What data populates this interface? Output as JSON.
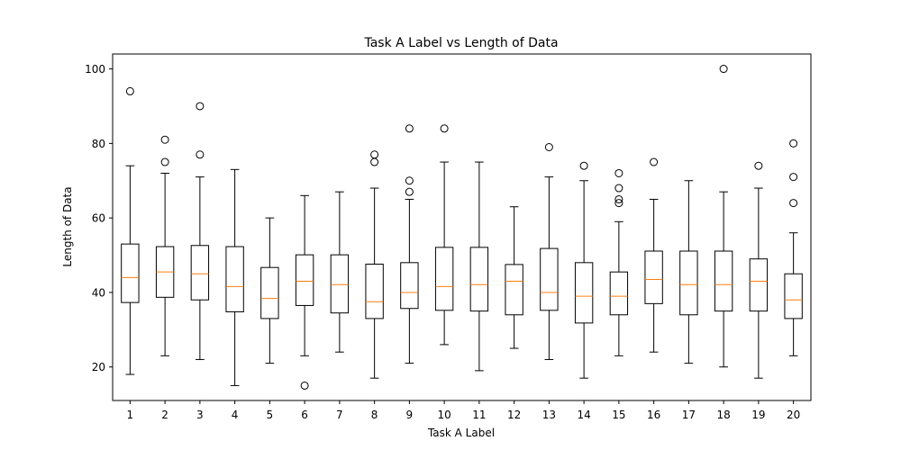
{
  "chart_data": {
    "type": "boxplot",
    "title": "Task A Label vs Length of Data",
    "xlabel": "Task A Label",
    "ylabel": "Length of Data",
    "ylim": [
      11,
      104
    ],
    "yticks": [
      20,
      40,
      60,
      80,
      100
    ],
    "grid": false,
    "box_color": "#000000",
    "median_color": "#ff7f0e",
    "categories": [
      "1",
      "2",
      "3",
      "4",
      "5",
      "6",
      "7",
      "8",
      "9",
      "10",
      "11",
      "12",
      "13",
      "14",
      "15",
      "16",
      "17",
      "18",
      "19",
      "20"
    ],
    "boxes": [
      {
        "label": "1",
        "whislo": 18,
        "q1": 37.3,
        "med": 44.0,
        "q3": 53.0,
        "whishi": 74,
        "fliers": [
          94
        ]
      },
      {
        "label": "2",
        "whislo": 23,
        "q1": 38.7,
        "med": 45.5,
        "q3": 52.3,
        "whishi": 72,
        "fliers": [
          75,
          81
        ]
      },
      {
        "label": "3",
        "whislo": 22,
        "q1": 38.0,
        "med": 45.0,
        "q3": 52.6,
        "whishi": 71,
        "fliers": [
          77,
          90
        ]
      },
      {
        "label": "4",
        "whislo": 15,
        "q1": 34.8,
        "med": 41.6,
        "q3": 52.3,
        "whishi": 73,
        "fliers": []
      },
      {
        "label": "5",
        "whislo": 21,
        "q1": 33.0,
        "med": 38.4,
        "q3": 46.7,
        "whishi": 60,
        "fliers": []
      },
      {
        "label": "6",
        "whislo": 23,
        "q1": 36.5,
        "med": 43.0,
        "q3": 50.1,
        "whishi": 66,
        "fliers": [
          15
        ]
      },
      {
        "label": "7",
        "whislo": 24,
        "q1": 34.5,
        "med": 42.1,
        "q3": 50.1,
        "whishi": 67,
        "fliers": []
      },
      {
        "label": "8",
        "whislo": 17,
        "q1": 33.0,
        "med": 37.5,
        "q3": 47.6,
        "whishi": 68,
        "fliers": [
          75,
          77
        ]
      },
      {
        "label": "9",
        "whislo": 21,
        "q1": 35.7,
        "med": 40.0,
        "q3": 48.0,
        "whishi": 65,
        "fliers": [
          67,
          70,
          84
        ]
      },
      {
        "label": "10",
        "whislo": 26,
        "q1": 35.2,
        "med": 41.6,
        "q3": 52.1,
        "whishi": 75,
        "fliers": [
          84
        ]
      },
      {
        "label": "11",
        "whislo": 19,
        "q1": 35.0,
        "med": 42.1,
        "q3": 52.1,
        "whishi": 75,
        "fliers": []
      },
      {
        "label": "12",
        "whislo": 25,
        "q1": 34.0,
        "med": 43.0,
        "q3": 47.5,
        "whishi": 63,
        "fliers": []
      },
      {
        "label": "13",
        "whislo": 22,
        "q1": 35.2,
        "med": 40.0,
        "q3": 51.8,
        "whishi": 71,
        "fliers": [
          79
        ]
      },
      {
        "label": "14",
        "whislo": 17,
        "q1": 31.8,
        "med": 39.0,
        "q3": 48.0,
        "whishi": 70,
        "fliers": [
          74
        ]
      },
      {
        "label": "15",
        "whislo": 23,
        "q1": 34.0,
        "med": 39.0,
        "q3": 45.5,
        "whishi": 59,
        "fliers": [
          64,
          65,
          68,
          72
        ]
      },
      {
        "label": "16",
        "whislo": 24,
        "q1": 37.0,
        "med": 43.5,
        "q3": 51.1,
        "whishi": 65,
        "fliers": [
          75
        ]
      },
      {
        "label": "17",
        "whislo": 21,
        "q1": 34.0,
        "med": 42.1,
        "q3": 51.1,
        "whishi": 70,
        "fliers": []
      },
      {
        "label": "18",
        "whislo": 20,
        "q1": 35.0,
        "med": 42.1,
        "q3": 51.1,
        "whishi": 67,
        "fliers": [
          100
        ]
      },
      {
        "label": "19",
        "whislo": 17,
        "q1": 35.0,
        "med": 43.0,
        "q3": 49.0,
        "whishi": 68,
        "fliers": [
          74
        ]
      },
      {
        "label": "20",
        "whislo": 23,
        "q1": 33.0,
        "med": 38.0,
        "q3": 45.0,
        "whishi": 56,
        "fliers": [
          64,
          71,
          80
        ]
      }
    ]
  }
}
